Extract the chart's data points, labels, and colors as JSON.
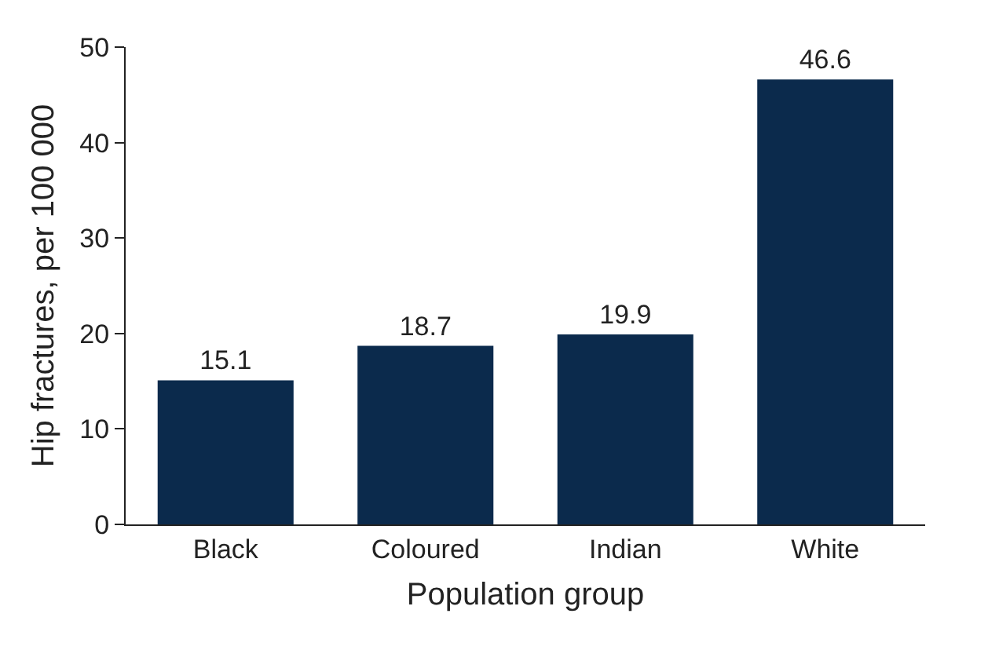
{
  "chart_data": {
    "type": "bar",
    "categories": [
      "Black",
      "Coloured",
      "Indian",
      "White"
    ],
    "values": [
      15.1,
      18.7,
      19.9,
      46.6
    ],
    "color": "#0b2a4c",
    "xlabel": "Population group",
    "ylabel": "Hip fractures, per 100 000",
    "ylim": [
      0,
      50
    ],
    "yticks": [
      0,
      10,
      20,
      30,
      40,
      50
    ],
    "data_labels": true
  }
}
